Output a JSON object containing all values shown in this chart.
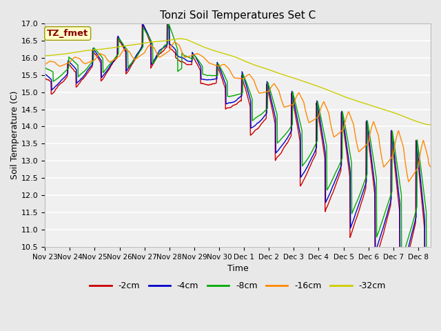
{
  "title": "Tonzi Soil Temperatures Set C",
  "xlabel": "Time",
  "ylabel": "Soil Temperature (C)",
  "ylim": [
    10.5,
    17.0
  ],
  "yticks": [
    10.5,
    11.0,
    11.5,
    12.0,
    12.5,
    13.0,
    13.5,
    14.0,
    14.5,
    15.0,
    15.5,
    16.0,
    16.5,
    17.0
  ],
  "series": {
    "-2cm": {
      "color": "#cc0000",
      "lw": 1.0
    },
    "-4cm": {
      "color": "#0000cc",
      "lw": 1.0
    },
    "-8cm": {
      "color": "#00aa00",
      "lw": 1.0
    },
    "-16cm": {
      "color": "#ff8800",
      "lw": 1.0
    },
    "-32cm": {
      "color": "#cccc00",
      "lw": 1.0
    }
  },
  "legend_order": [
    "-2cm",
    "-4cm",
    "-8cm",
    "-16cm",
    "-32cm"
  ],
  "bg_color": "#e8e8e8",
  "plot_bg": "#f0f0f0",
  "annotation_text": "TZ_fmet",
  "annotation_bg": "#ffffcc",
  "annotation_fg": "#880000",
  "xtick_labels": [
    "Nov 23",
    "Nov 24",
    "Nov 25",
    "Nov 26",
    "Nov 27",
    "Nov 28",
    "Nov 29",
    "Nov 30",
    "Dec 1",
    "Dec 2",
    "Dec 3",
    "Dec 4",
    "Dec 5",
    "Dec 6",
    "Dec 7",
    "Dec 8"
  ],
  "xtick_positions": [
    0,
    1,
    2,
    3,
    4,
    5,
    6,
    7,
    8,
    9,
    10,
    11,
    12,
    13,
    14,
    15
  ]
}
